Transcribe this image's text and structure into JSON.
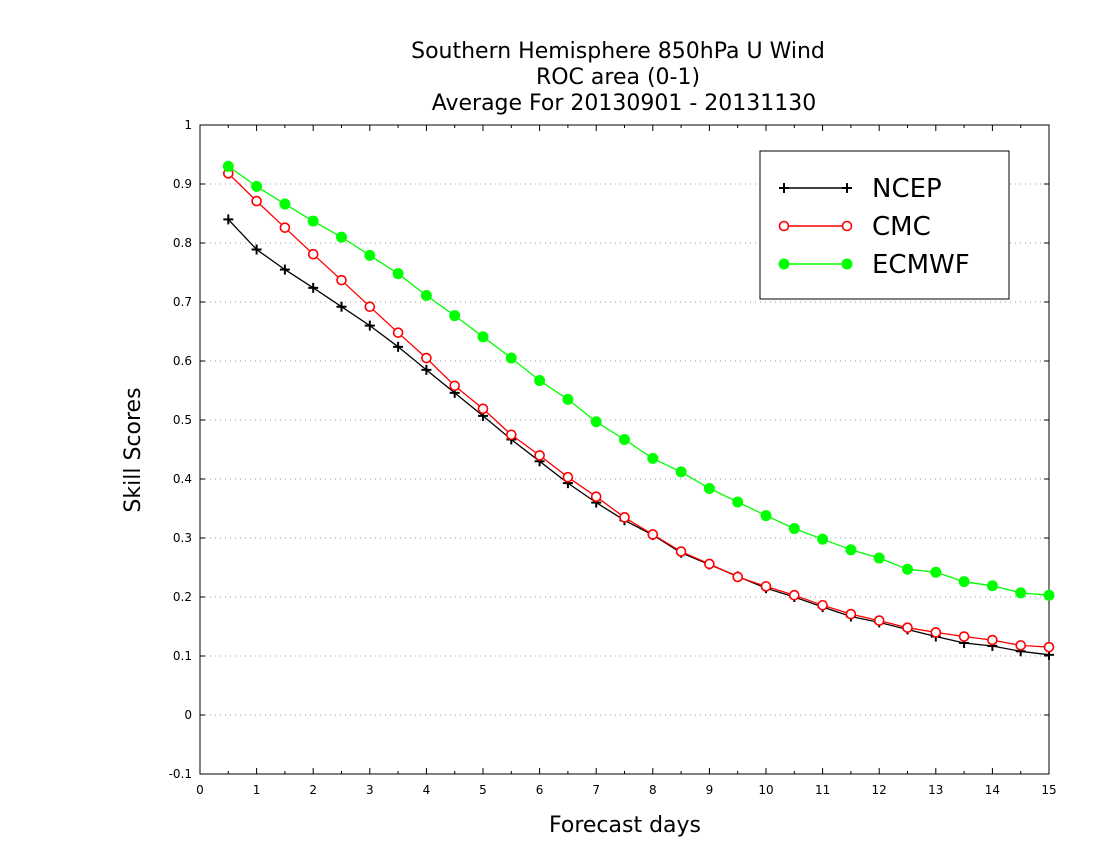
{
  "chart_data": {
    "type": "line",
    "title": [
      "Southern Hemisphere 850hPa U Wind",
      "ROC area (0-1)",
      "Average For 20130901 - 20131130"
    ],
    "xlabel": "Forecast days",
    "ylabel": "Skill Scores",
    "xlim": [
      0,
      15
    ],
    "ylim": [
      -0.1,
      1
    ],
    "xticks": [
      "0",
      "1",
      "2",
      "3",
      "4",
      "5",
      "6",
      "7",
      "8",
      "9",
      "10",
      "11",
      "12",
      "13",
      "14",
      "15"
    ],
    "yticks": [
      "-0.1",
      "0",
      "0.1",
      "0.2",
      "0.3",
      "0.4",
      "0.5",
      "0.6",
      "0.7",
      "0.8",
      "0.9",
      "1"
    ],
    "grid": "horizontal-dotted",
    "legend_position": "top-right",
    "x": [
      0.5,
      1,
      1.5,
      2,
      2.5,
      3,
      3.5,
      4,
      4.5,
      5,
      5.5,
      6,
      6.5,
      7,
      7.5,
      8,
      8.5,
      9,
      9.5,
      10,
      10.5,
      11,
      11.5,
      12,
      12.5,
      13,
      13.5,
      14,
      14.5,
      15
    ],
    "series": [
      {
        "name": "NCEP",
        "color": "#000000",
        "marker": "plus",
        "values": [
          0.84,
          0.789,
          0.755,
          0.724,
          0.692,
          0.66,
          0.624,
          0.585,
          0.546,
          0.507,
          0.467,
          0.43,
          0.393,
          0.36,
          0.33,
          0.305,
          0.275,
          0.255,
          0.235,
          0.215,
          0.2,
          0.183,
          0.167,
          0.157,
          0.145,
          0.133,
          0.122,
          0.117,
          0.108,
          0.102
        ]
      },
      {
        "name": "CMC",
        "color": "#ff0000",
        "marker": "open-circle",
        "values": [
          0.918,
          0.871,
          0.826,
          0.781,
          0.737,
          0.692,
          0.648,
          0.605,
          0.558,
          0.519,
          0.475,
          0.44,
          0.403,
          0.37,
          0.335,
          0.306,
          0.277,
          0.256,
          0.234,
          0.218,
          0.203,
          0.186,
          0.171,
          0.16,
          0.148,
          0.14,
          0.133,
          0.127,
          0.118,
          0.115
        ]
      },
      {
        "name": "ECMWF",
        "color": "#00ff00",
        "marker": "filled-circle",
        "values": [
          0.93,
          0.896,
          0.866,
          0.837,
          0.81,
          0.779,
          0.748,
          0.711,
          0.677,
          0.641,
          0.605,
          0.567,
          0.535,
          0.497,
          0.467,
          0.435,
          0.412,
          0.384,
          0.361,
          0.338,
          0.316,
          0.298,
          0.28,
          0.266,
          0.247,
          0.242,
          0.226,
          0.219,
          0.207,
          0.203
        ]
      }
    ]
  }
}
